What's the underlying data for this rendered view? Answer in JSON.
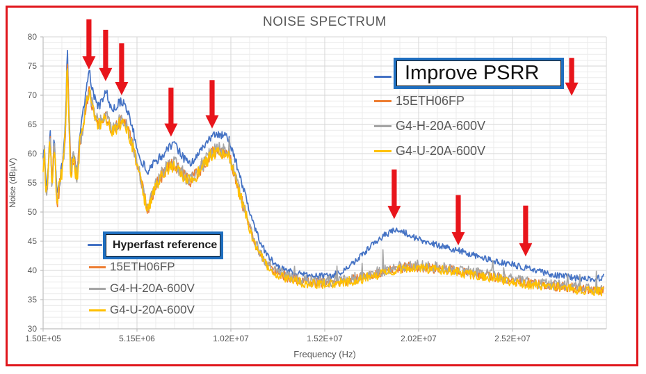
{
  "frame": {
    "border_color": "#e0161c"
  },
  "title": "NOISE SPECTRUM",
  "axis_titles": {
    "x": "Frequency (Hz)",
    "y": "Noise (dBµV)"
  },
  "legend_top": {
    "box_label": "Improve PSRR",
    "box_series_color": "#4472C4",
    "border_color": "#1f6fc0",
    "items": [
      {
        "label": "15ETH06FP",
        "color": "#ED7D31"
      },
      {
        "label": "G4-H-20A-600V",
        "color": "#A5A5A5"
      },
      {
        "label": "G4-U-20A-600V",
        "color": "#FFC000"
      }
    ]
  },
  "legend_bottom": {
    "box_label": "Hyperfast reference",
    "box_series_color": "#4472C4",
    "border_color": "#1f6fc0",
    "items": [
      {
        "label": "15ETH06FP",
        "color": "#ED7D31"
      },
      {
        "label": "G4-H-20A-600V",
        "color": "#A5A5A5"
      },
      {
        "label": "G4-U-20A-600V",
        "color": "#FFC000"
      }
    ]
  },
  "chart_data": {
    "type": "line",
    "title": "NOISE SPECTRUM",
    "xlabel": "Frequency (Hz)",
    "ylabel": "Noise (dBµV)",
    "xlim": [
      150000,
      30150000
    ],
    "ylim": [
      30,
      80
    ],
    "grid": true,
    "x_ticks": [
      {
        "value": 150000,
        "label": "1.50E+05"
      },
      {
        "value": 5150000,
        "label": "5.15E+06"
      },
      {
        "value": 10150000,
        "label": "1.02E+07"
      },
      {
        "value": 15150000,
        "label": "1.52E+07"
      },
      {
        "value": 20150000,
        "label": "2.02E+07"
      },
      {
        "value": 25150000,
        "label": "2.52E+07"
      }
    ],
    "y_ticks": [
      30,
      35,
      40,
      45,
      50,
      55,
      60,
      65,
      70,
      75,
      80
    ],
    "minor_x_step_hz": 1000000,
    "minor_y_step_db": 1,
    "grid_colors": {
      "minor": "#ebebeb",
      "major": "#d6d6d6",
      "axis": "#bfbfbf"
    },
    "envelopes_mhz_db": {
      "reference": [
        [
          0.15,
          59
        ],
        [
          0.22,
          61.5
        ],
        [
          0.3,
          54
        ],
        [
          0.4,
          56.5
        ],
        [
          0.52,
          64.3
        ],
        [
          0.62,
          54.5
        ],
        [
          0.74,
          63
        ],
        [
          0.89,
          52.5
        ],
        [
          1.02,
          55.5
        ],
        [
          1.2,
          58.5
        ],
        [
          1.35,
          66
        ],
        [
          1.44,
          78.3
        ],
        [
          1.52,
          68
        ],
        [
          1.62,
          57.5
        ],
        [
          1.78,
          60.5
        ],
        [
          1.95,
          56.5
        ],
        [
          2.1,
          63
        ],
        [
          2.25,
          66.5
        ],
        [
          2.4,
          70
        ],
        [
          2.6,
          74.2
        ],
        [
          2.75,
          71.5
        ],
        [
          2.9,
          69.5
        ],
        [
          3.1,
          68
        ],
        [
          3.3,
          69
        ],
        [
          3.5,
          71
        ],
        [
          3.65,
          68.8
        ],
        [
          3.8,
          67.6
        ],
        [
          4.0,
          67.8
        ],
        [
          4.2,
          68.8
        ],
        [
          4.4,
          68.9
        ],
        [
          4.6,
          67.6
        ],
        [
          4.8,
          65.8
        ],
        [
          5.05,
          62.5
        ],
        [
          5.35,
          59
        ],
        [
          5.7,
          56.9
        ],
        [
          6.1,
          58.4
        ],
        [
          6.5,
          59.8
        ],
        [
          6.9,
          61.3
        ],
        [
          7.15,
          61.4
        ],
        [
          7.45,
          60.2
        ],
        [
          7.75,
          58.7
        ],
        [
          8.0,
          58.4
        ],
        [
          8.35,
          59.6
        ],
        [
          8.7,
          61.2
        ],
        [
          9.1,
          62.9
        ],
        [
          9.45,
          63.2
        ],
        [
          9.8,
          63
        ],
        [
          10.05,
          62.4
        ],
        [
          10.3,
          60
        ],
        [
          10.6,
          56.5
        ],
        [
          10.95,
          52.5
        ],
        [
          11.3,
          48.5
        ],
        [
          11.7,
          45
        ],
        [
          12.1,
          42.5
        ],
        [
          12.6,
          40.8
        ],
        [
          13.1,
          40
        ],
        [
          13.6,
          39.5
        ],
        [
          14.2,
          39.1
        ],
        [
          14.8,
          39
        ],
        [
          15.4,
          39.1
        ],
        [
          16.0,
          39.7
        ],
        [
          16.6,
          41
        ],
        [
          17.2,
          42.8
        ],
        [
          17.8,
          44.8
        ],
        [
          18.4,
          46.2
        ],
        [
          18.9,
          46.9
        ],
        [
          19.4,
          46.5
        ],
        [
          19.9,
          45.7
        ],
        [
          20.5,
          44.9
        ],
        [
          21.1,
          44.4
        ],
        [
          21.7,
          43.9
        ],
        [
          22.3,
          43.4
        ],
        [
          22.9,
          42.8
        ],
        [
          23.5,
          42.2
        ],
        [
          24.1,
          41.7
        ],
        [
          24.7,
          41.3
        ],
        [
          25.3,
          40.9
        ],
        [
          25.9,
          40.4
        ],
        [
          26.5,
          39.9
        ],
        [
          27.1,
          39.4
        ],
        [
          27.7,
          39.1
        ],
        [
          28.3,
          38.8
        ],
        [
          28.9,
          38.6
        ],
        [
          29.4,
          38.5
        ],
        [
          30.0,
          38.8
        ]
      ],
      "group": [
        [
          0.15,
          58
        ],
        [
          0.22,
          60.5
        ],
        [
          0.3,
          53
        ],
        [
          0.4,
          55.5
        ],
        [
          0.52,
          63
        ],
        [
          0.62,
          53.5
        ],
        [
          0.74,
          62
        ],
        [
          0.89,
          51.5
        ],
        [
          1.02,
          54.5
        ],
        [
          1.2,
          57.5
        ],
        [
          1.35,
          65
        ],
        [
          1.44,
          76.5
        ],
        [
          1.52,
          66.5
        ],
        [
          1.62,
          56.5
        ],
        [
          1.78,
          59.5
        ],
        [
          1.95,
          55.5
        ],
        [
          2.1,
          61.5
        ],
        [
          2.25,
          64
        ],
        [
          2.4,
          67.5
        ],
        [
          2.6,
          71
        ],
        [
          2.75,
          68.5
        ],
        [
          2.9,
          66.5
        ],
        [
          3.1,
          65
        ],
        [
          3.3,
          65.5
        ],
        [
          3.5,
          66.4
        ],
        [
          3.65,
          65
        ],
        [
          3.8,
          64.2
        ],
        [
          4.0,
          64.4
        ],
        [
          4.2,
          65.3
        ],
        [
          4.4,
          65.6
        ],
        [
          4.6,
          64.5
        ],
        [
          4.8,
          62.8
        ],
        [
          5.05,
          59.5
        ],
        [
          5.35,
          55.5
        ],
        [
          5.7,
          50.2
        ],
        [
          6.1,
          54.3
        ],
        [
          6.5,
          56.4
        ],
        [
          6.9,
          58
        ],
        [
          7.15,
          58.2
        ],
        [
          7.45,
          57
        ],
        [
          7.75,
          55.7
        ],
        [
          8.0,
          55.4
        ],
        [
          8.35,
          56.6
        ],
        [
          8.7,
          58.2
        ],
        [
          9.1,
          59.9
        ],
        [
          9.45,
          60.5
        ],
        [
          9.8,
          60.2
        ],
        [
          10.05,
          59.5
        ],
        [
          10.3,
          57
        ],
        [
          10.6,
          53.5
        ],
        [
          10.95,
          49.5
        ],
        [
          11.3,
          45.8
        ],
        [
          11.7,
          42.8
        ],
        [
          12.1,
          41
        ],
        [
          12.6,
          39.6
        ],
        [
          13.1,
          38.9
        ],
        [
          13.6,
          38.4
        ],
        [
          14.2,
          38
        ],
        [
          14.8,
          37.9
        ],
        [
          15.4,
          37.9
        ],
        [
          16.0,
          38.1
        ],
        [
          16.6,
          38.4
        ],
        [
          17.2,
          38.8
        ],
        [
          17.8,
          39.3
        ],
        [
          18.4,
          39.8
        ],
        [
          18.9,
          40.2
        ],
        [
          19.4,
          40.5
        ],
        [
          19.9,
          40.6
        ],
        [
          20.5,
          40.5
        ],
        [
          21.1,
          40.3
        ],
        [
          21.7,
          40.1
        ],
        [
          22.3,
          39.8
        ],
        [
          22.9,
          39.5
        ],
        [
          23.5,
          39.2
        ],
        [
          24.1,
          38.9
        ],
        [
          24.7,
          38.6
        ],
        [
          25.3,
          38.2
        ],
        [
          25.9,
          37.9
        ],
        [
          26.5,
          37.6
        ],
        [
          27.1,
          37.4
        ],
        [
          27.7,
          37.2
        ],
        [
          28.3,
          37
        ],
        [
          28.9,
          36.8
        ],
        [
          29.4,
          36.6
        ],
        [
          30.0,
          36.7
        ]
      ]
    },
    "series": [
      {
        "name": "Hyperfast reference",
        "color": "#4472C4",
        "envelope": "reference",
        "offset_db": 0,
        "noise_db": 0.55,
        "spikes": false,
        "width": 1.7
      },
      {
        "name": "15ETH06FP",
        "color": "#ED7D31",
        "envelope": "group",
        "offset_db": 0,
        "noise_db": 0.85,
        "spikes": false,
        "width": 1.6
      },
      {
        "name": "G4-H-20A-600V",
        "color": "#A5A5A5",
        "envelope": "group",
        "offset_db": 0.25,
        "noise_db": 0.95,
        "spikes": true,
        "width": 1.6
      },
      {
        "name": "G4-U-20A-600V",
        "color": "#FFC000",
        "envelope": "group",
        "offset_db": -0.2,
        "noise_db": 0.85,
        "spikes": false,
        "width": 1.6
      }
    ],
    "annotations": {
      "arrow_color": "#e8151b",
      "arrows_f_mhz_dbtop_dbtip": [
        [
          2.59,
          83.0,
          74.4
        ],
        [
          3.48,
          81.2,
          72.4
        ],
        [
          4.33,
          78.9,
          70.0
        ],
        [
          6.96,
          71.3,
          62.9
        ],
        [
          9.15,
          72.6,
          64.3
        ],
        [
          28.3,
          76.4,
          69.9
        ],
        [
          18.85,
          57.3,
          48.8
        ],
        [
          22.26,
          52.9,
          44.3
        ],
        [
          25.85,
          51.1,
          42.4
        ]
      ]
    }
  }
}
